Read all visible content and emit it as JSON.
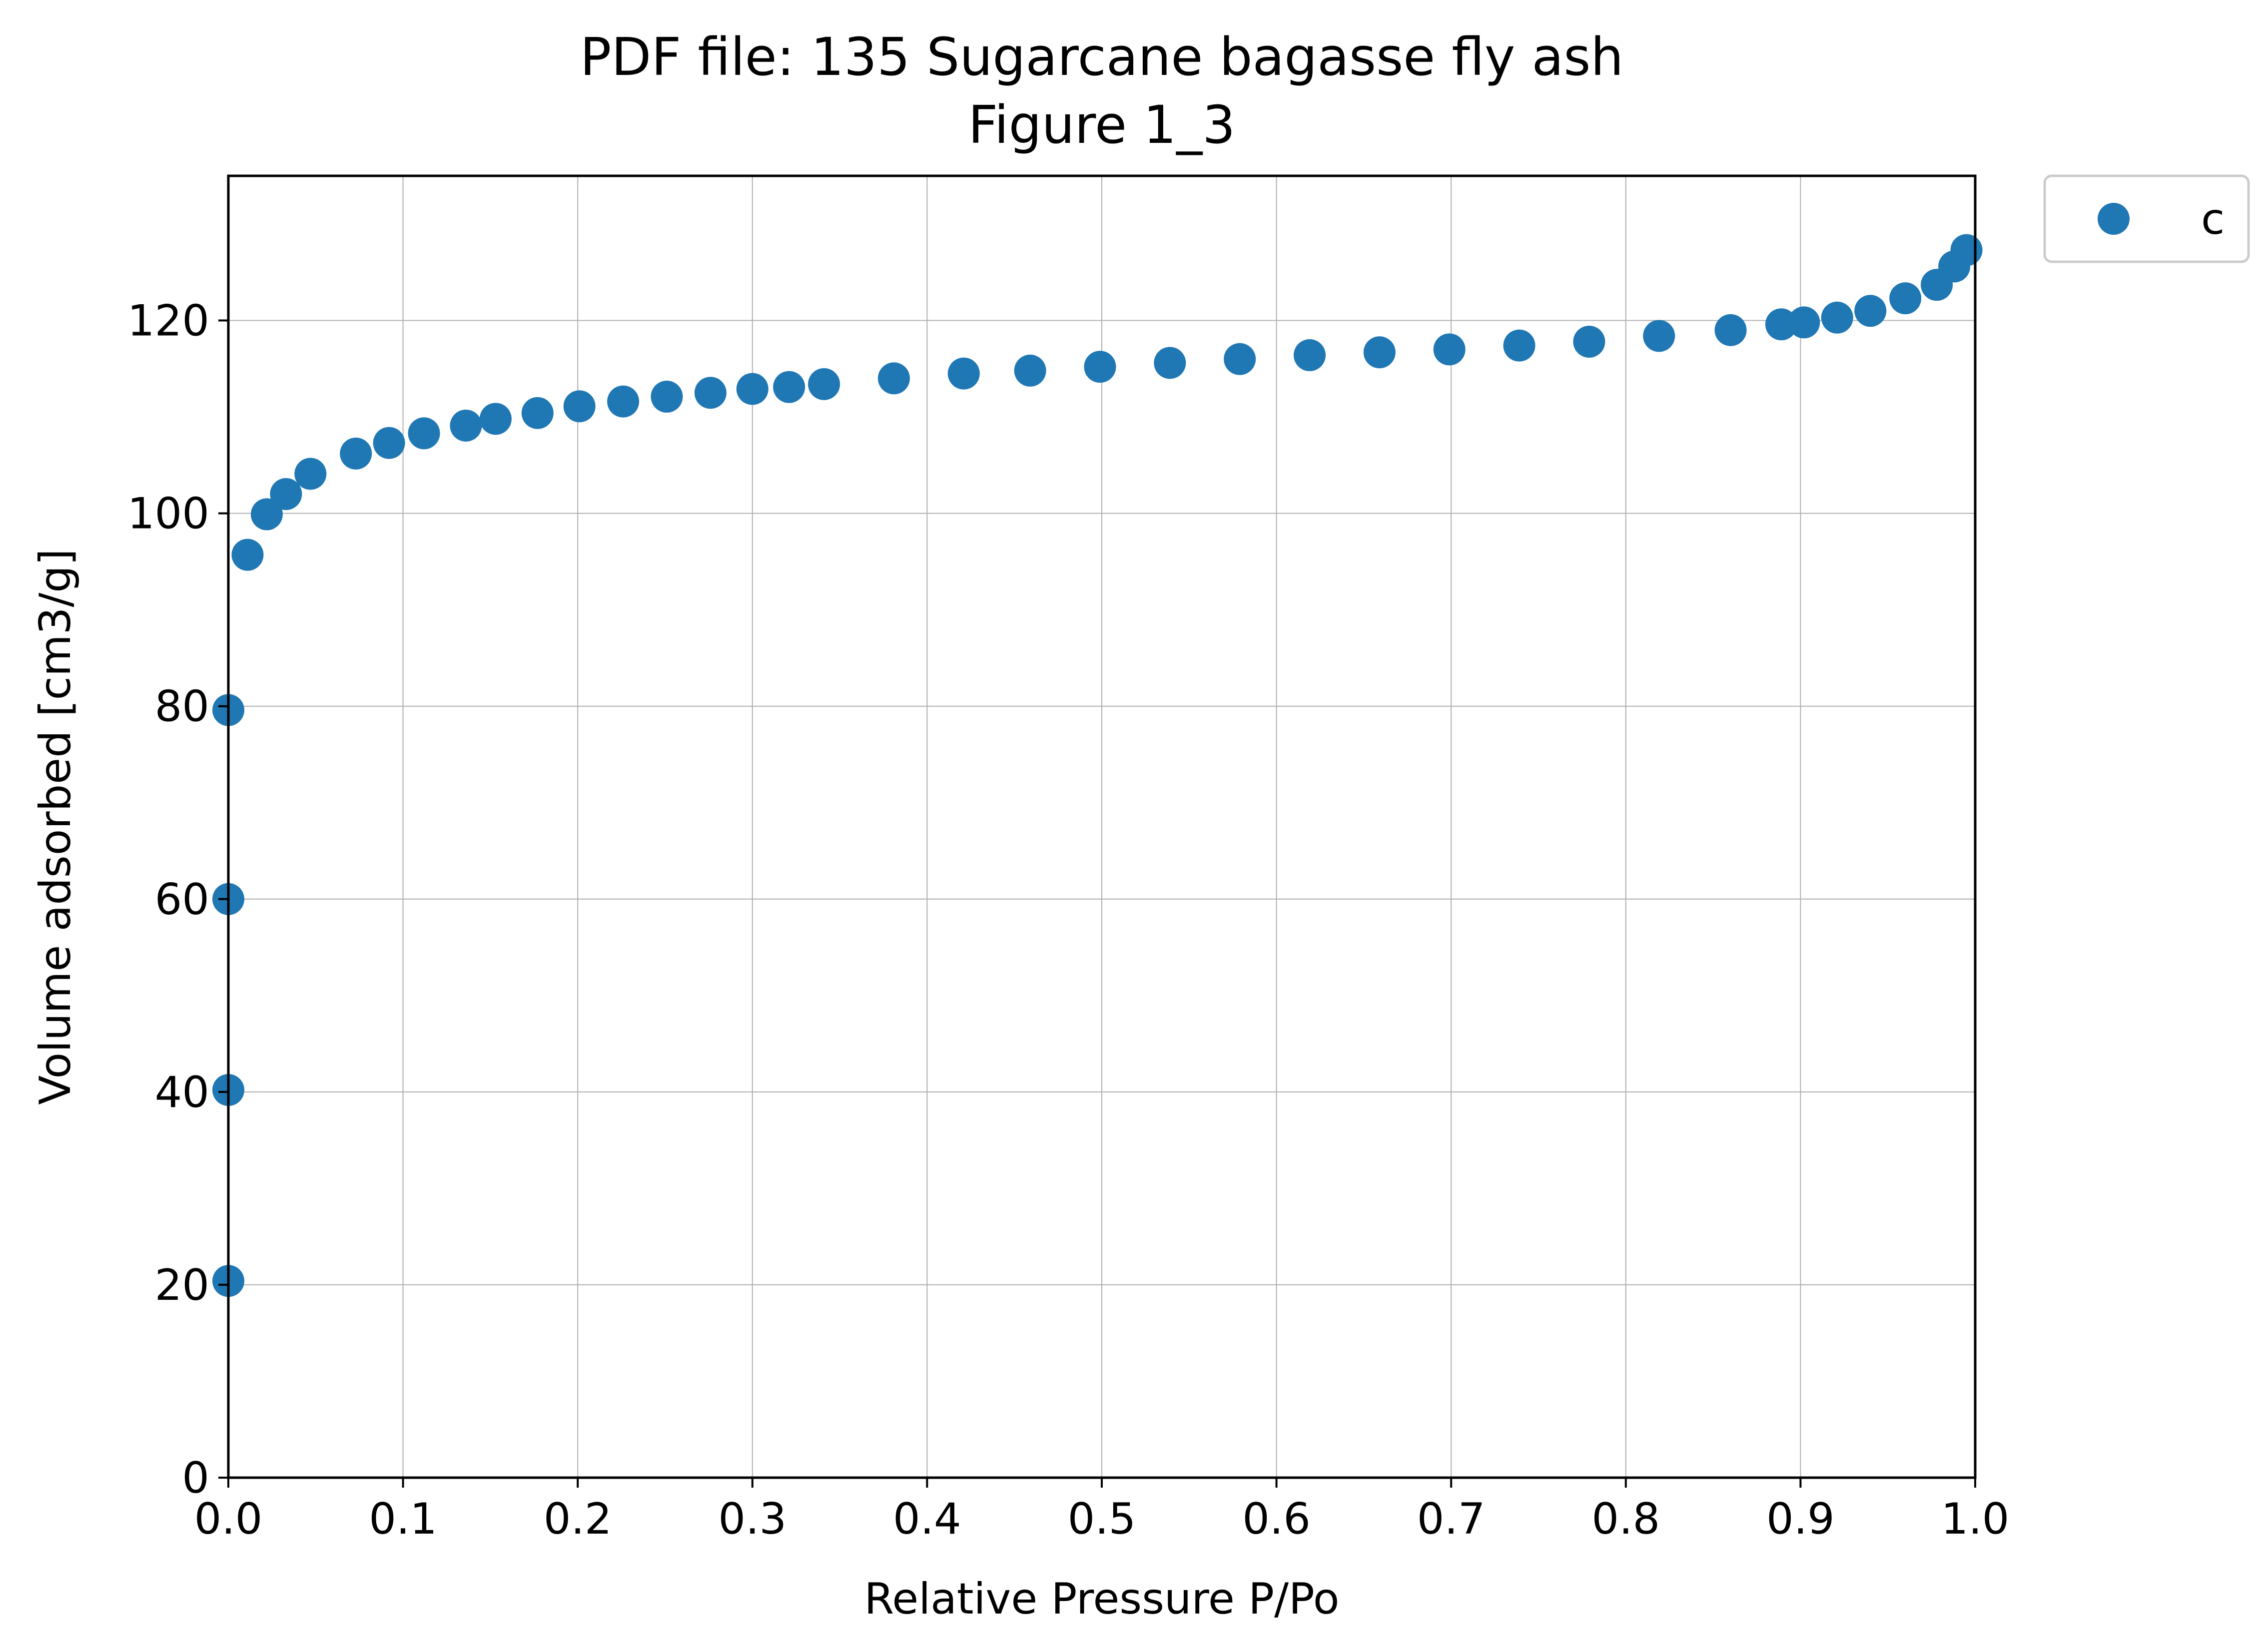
{
  "chart_data": {
    "type": "scatter",
    "title": "PDF file: 135 Sugarcane bagasse fly ash",
    "subtitle": "Figure 1_3",
    "xlabel": "Relative Pressure P/Po",
    "ylabel": "Volume adsorbed [cm3/g]",
    "xlim": [
      0.0,
      1.0
    ],
    "ylim": [
      0,
      135
    ],
    "xticks": [
      0.0,
      0.1,
      0.2,
      0.3,
      0.4,
      0.5,
      0.6,
      0.7,
      0.8,
      0.9,
      1.0
    ],
    "xtick_labels": [
      "0.0",
      "0.1",
      "0.2",
      "0.3",
      "0.4",
      "0.5",
      "0.6",
      "0.7",
      "0.8",
      "0.9",
      "1.0"
    ],
    "yticks": [
      0,
      20,
      40,
      60,
      80,
      100,
      120
    ],
    "ytick_labels": [
      "0",
      "20",
      "40",
      "60",
      "80",
      "100",
      "120"
    ],
    "grid": true,
    "legend_position": "outside-top-right",
    "series": [
      {
        "name": "c",
        "color": "#1f77b4",
        "marker": "circle",
        "x": [
          0.0,
          0.0,
          0.0,
          0.0,
          0.011,
          0.022,
          0.033,
          0.047,
          0.073,
          0.092,
          0.112,
          0.136,
          0.153,
          0.177,
          0.201,
          0.226,
          0.251,
          0.276,
          0.3,
          0.321,
          0.341,
          0.381,
          0.421,
          0.459,
          0.499,
          0.539,
          0.579,
          0.619,
          0.659,
          0.699,
          0.739,
          0.779,
          0.819,
          0.86,
          0.889,
          0.902,
          0.921,
          0.94,
          0.96,
          0.978,
          0.988,
          0.995
        ],
        "y": [
          20.4,
          40.2,
          60.0,
          79.6,
          95.7,
          99.9,
          102.0,
          104.1,
          106.2,
          107.3,
          108.3,
          109.1,
          109.8,
          110.4,
          111.1,
          111.6,
          112.1,
          112.5,
          112.9,
          113.1,
          113.4,
          114.0,
          114.5,
          114.8,
          115.2,
          115.6,
          116.0,
          116.4,
          116.7,
          117.0,
          117.4,
          117.8,
          118.4,
          119.0,
          119.6,
          119.8,
          120.3,
          121.0,
          122.3,
          123.7,
          125.6,
          127.3
        ]
      }
    ]
  }
}
